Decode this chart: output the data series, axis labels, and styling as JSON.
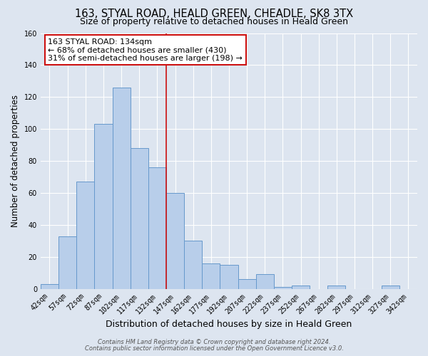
{
  "title": "163, STYAL ROAD, HEALD GREEN, CHEADLE, SK8 3TX",
  "subtitle": "Size of property relative to detached houses in Heald Green",
  "xlabel": "Distribution of detached houses by size in Heald Green",
  "ylabel": "Number of detached properties",
  "categories": [
    "42sqm",
    "57sqm",
    "72sqm",
    "87sqm",
    "102sqm",
    "117sqm",
    "132sqm",
    "147sqm",
    "162sqm",
    "177sqm",
    "192sqm",
    "207sqm",
    "222sqm",
    "237sqm",
    "252sqm",
    "267sqm",
    "282sqm",
    "297sqm",
    "312sqm",
    "327sqm",
    "342sqm"
  ],
  "values": [
    3,
    33,
    67,
    103,
    126,
    88,
    76,
    60,
    30,
    16,
    15,
    6,
    9,
    1,
    2,
    0,
    2,
    0,
    0,
    2,
    0
  ],
  "bar_color": "#b8ceea",
  "bar_edge_color": "#6699cc",
  "annotation_title": "163 STYAL ROAD: 134sqm",
  "annotation_line1": "← 68% of detached houses are smaller (430)",
  "annotation_line2": "31% of semi-detached houses are larger (198) →",
  "annotation_box_color": "#ffffff",
  "annotation_box_edge": "#cc1111",
  "property_line_color": "#cc1111",
  "footer_line1": "Contains HM Land Registry data © Crown copyright and database right 2024.",
  "footer_line2": "Contains public sector information licensed under the Open Government Licence v3.0.",
  "ylim": [
    0,
    160
  ],
  "yticks": [
    0,
    20,
    40,
    60,
    80,
    100,
    120,
    140,
    160
  ],
  "background_color": "#dde5f0",
  "grid_color": "#ffffff",
  "title_fontsize": 10.5,
  "subtitle_fontsize": 9,
  "xlabel_fontsize": 9,
  "ylabel_fontsize": 8.5,
  "tick_fontsize": 7,
  "footer_fontsize": 6,
  "ann_fontsize": 8
}
